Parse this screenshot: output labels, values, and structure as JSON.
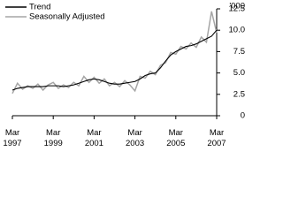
{
  "chart_data": {
    "type": "line",
    "y_axis_label": "'000",
    "x": [
      "Mar 1997",
      "Jun 1997",
      "Sep 1997",
      "Dec 1997",
      "Mar 1998",
      "Jun 1998",
      "Sep 1998",
      "Dec 1998",
      "Mar 1999",
      "Jun 1999",
      "Sep 1999",
      "Dec 1999",
      "Mar 2000",
      "Jun 2000",
      "Sep 2000",
      "Dec 2000",
      "Mar 2001",
      "Jun 2001",
      "Sep 2001",
      "Dec 2001",
      "Mar 2002",
      "Jun 2002",
      "Sep 2002",
      "Dec 2002",
      "Mar 2003",
      "Jun 2003",
      "Sep 2003",
      "Dec 2003",
      "Mar 2004",
      "Jun 2004",
      "Sep 2004",
      "Dec 2004",
      "Mar 2005",
      "Jun 2005",
      "Sep 2005",
      "Dec 2005",
      "Mar 2006",
      "Jun 2006",
      "Sep 2006",
      "Dec 2006",
      "Mar 2007"
    ],
    "series": [
      {
        "name": "Trend",
        "color": "#000000",
        "values": [
          3.0,
          3.2,
          3.3,
          3.4,
          3.4,
          3.4,
          3.4,
          3.5,
          3.5,
          3.5,
          3.4,
          3.5,
          3.6,
          3.8,
          4.0,
          4.2,
          4.3,
          4.2,
          4.0,
          3.8,
          3.7,
          3.7,
          3.8,
          3.9,
          4.0,
          4.3,
          4.7,
          4.9,
          5.0,
          5.6,
          6.4,
          7.1,
          7.5,
          7.8,
          8.1,
          8.2,
          8.4,
          8.7,
          9.0,
          9.3,
          10.0
        ]
      },
      {
        "name": "Seasonally Adjusted",
        "color": "#a6a6a6",
        "values": [
          2.6,
          3.8,
          3.1,
          3.5,
          3.2,
          3.7,
          3.0,
          3.6,
          3.9,
          3.2,
          3.6,
          3.3,
          3.9,
          3.5,
          4.6,
          3.9,
          4.5,
          3.8,
          4.3,
          3.5,
          3.9,
          3.4,
          4.1,
          3.6,
          2.9,
          4.6,
          4.4,
          5.2,
          4.8,
          5.9,
          6.2,
          7.4,
          7.2,
          8.1,
          7.8,
          8.5,
          8.0,
          9.2,
          8.6,
          12.2,
          9.7
        ]
      }
    ],
    "xticks": [
      "Mar 1997",
      "Mar 1999",
      "Mar 2001",
      "Mar 2003",
      "Mar 2005",
      "Mar 2007"
    ],
    "ylim": [
      0,
      12.5
    ],
    "yticks": [
      0,
      2.5,
      {
        "value": 5,
        "label": "5.0"
      },
      7.5,
      {
        "value": 10,
        "label": "10.0"
      },
      12.5
    ],
    "legend": "top-left"
  }
}
